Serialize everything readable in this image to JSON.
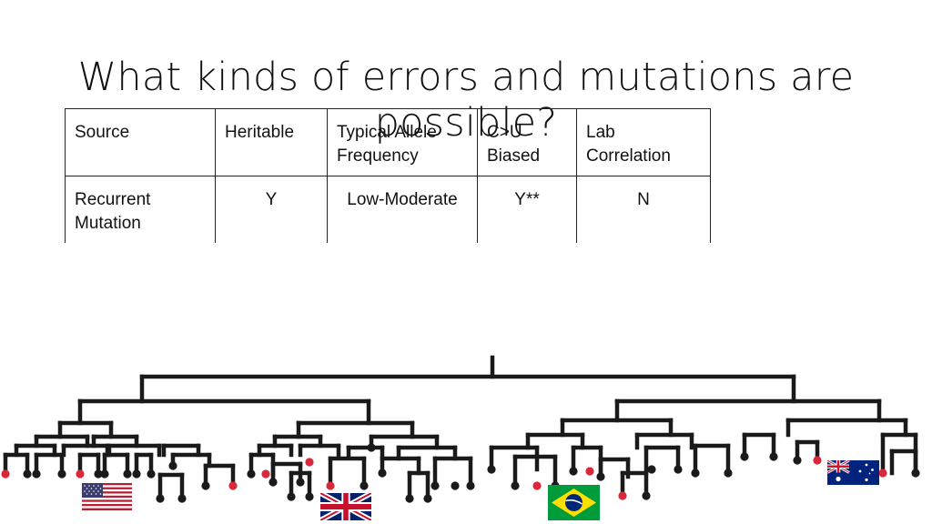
{
  "slide": {
    "title": "What kinds of errors and mutations are possible?"
  },
  "table": {
    "headers": [
      "Source",
      "Heritable",
      "Typical Allele Frequency",
      "C>U Biased",
      "Lab Correlation"
    ],
    "rows": [
      [
        "Recurrent Mutation",
        "Y",
        "Low-Moderate",
        "Y**",
        "N"
      ]
    ]
  },
  "tree": {
    "line_color": "#1a1a1a",
    "tip_color": "#1a1a1a",
    "highlight_color": "#d8283a"
  },
  "flags": [
    {
      "country": "usa-flag-icon"
    },
    {
      "country": "uk-flag-icon"
    },
    {
      "country": "brazil-flag-icon"
    },
    {
      "country": "australia-flag-icon"
    }
  ]
}
